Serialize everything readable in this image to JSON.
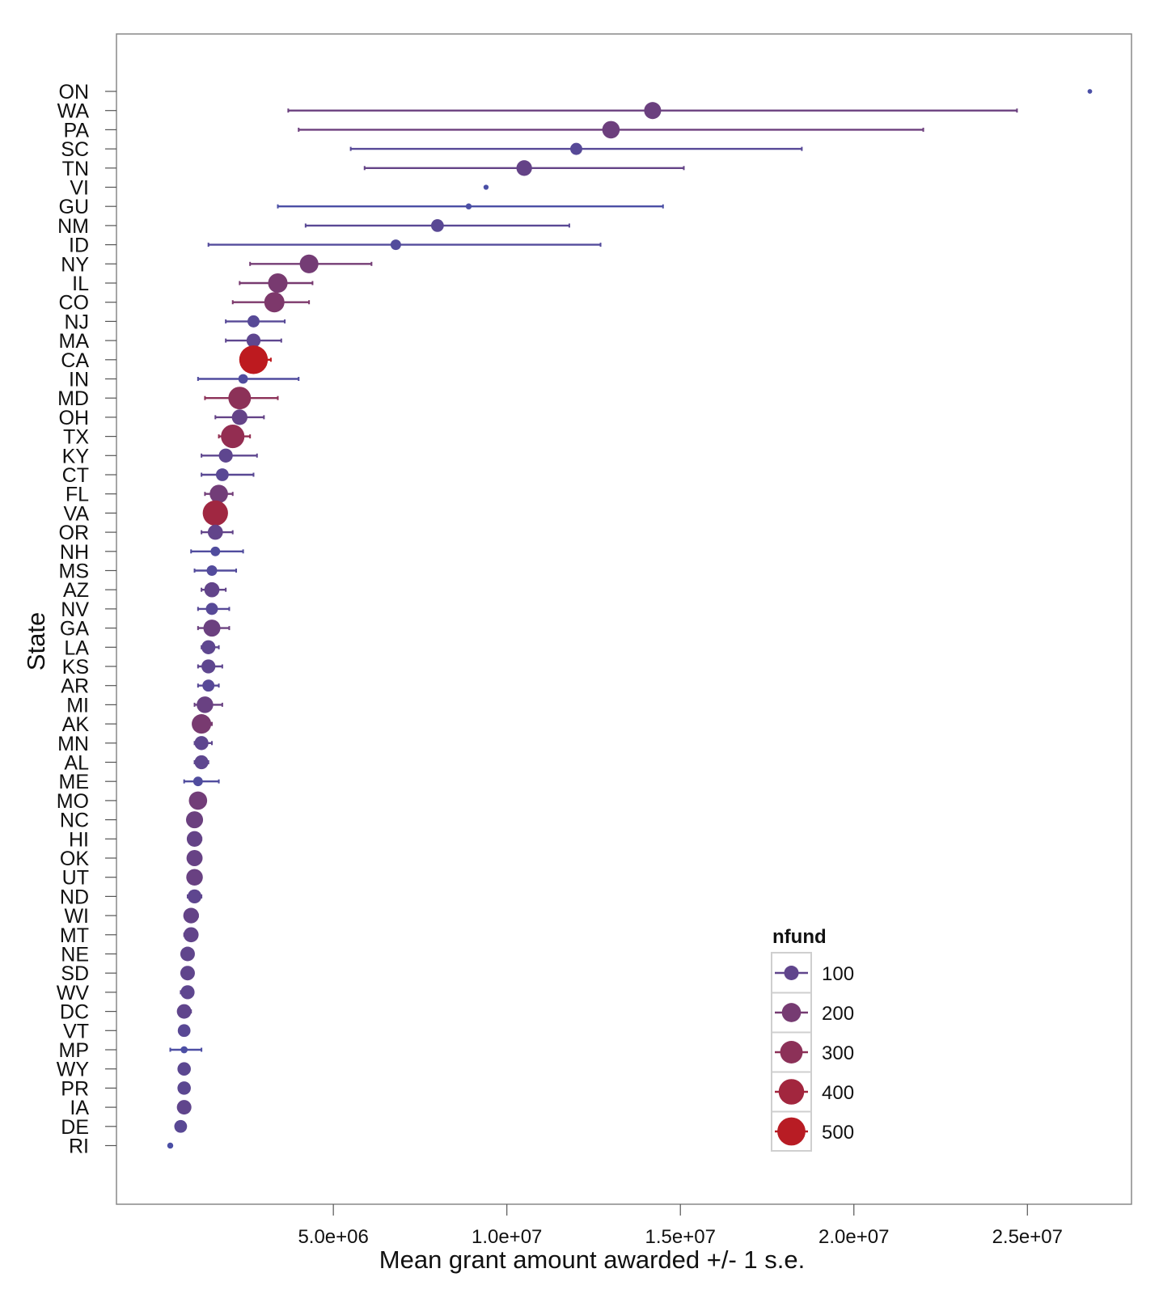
{
  "chart_data": {
    "type": "scatter",
    "subtype": "dot-plot-with-error-bars",
    "xlabel": "Mean grant amount awarded +/- 1 s.e.",
    "ylabel": "State",
    "x_ticks": [
      5000000,
      10000000,
      15000000,
      20000000,
      25000000
    ],
    "x_tick_labels": [
      "5.0e+06",
      "1.0e+07",
      "1.5e+07",
      "2.0e+07",
      "2.5e+07"
    ],
    "xlim": [
      -1250000,
      28000000
    ],
    "grid": false,
    "legend": {
      "title": "nfund",
      "placement": "bottom-right inside plot",
      "entries": [
        {
          "label": "100",
          "nfund": 100,
          "color": "#4a4fa6"
        },
        {
          "label": "200",
          "nfund": 200,
          "color": "#6a3c8a"
        },
        {
          "label": "300",
          "nfund": 300,
          "color": "#8a2f62"
        },
        {
          "label": "400",
          "nfund": 400,
          "color": "#a52238"
        },
        {
          "label": "500",
          "nfund": 500,
          "color": "#bd1a1f"
        }
      ]
    },
    "color_low": "#4a4fa6",
    "color_high": "#bd1a1f",
    "states": [
      {
        "state": "ON",
        "mean": 26800000,
        "lo": 26800000,
        "hi": 26800000,
        "nfund": 1
      },
      {
        "state": "WA",
        "mean": 14200000,
        "lo": 3700000,
        "hi": 24700000,
        "nfund": 150
      },
      {
        "state": "PA",
        "mean": 13000000,
        "lo": 4000000,
        "hi": 22000000,
        "nfund": 160
      },
      {
        "state": "SC",
        "mean": 12000000,
        "lo": 5500000,
        "hi": 18500000,
        "nfund": 60
      },
      {
        "state": "TN",
        "mean": 10500000,
        "lo": 5900000,
        "hi": 15100000,
        "nfund": 120
      },
      {
        "state": "VI",
        "mean": 9400000,
        "lo": 9400000,
        "hi": 9400000,
        "nfund": 2
      },
      {
        "state": "GU",
        "mean": 8900000,
        "lo": 3400000,
        "hi": 14500000,
        "nfund": 5
      },
      {
        "state": "NM",
        "mean": 8000000,
        "lo": 4200000,
        "hi": 11800000,
        "nfund": 70
      },
      {
        "state": "ID",
        "mean": 6800000,
        "lo": 1400000,
        "hi": 12700000,
        "nfund": 40
      },
      {
        "state": "NY",
        "mean": 4300000,
        "lo": 2600000,
        "hi": 6100000,
        "nfund": 190
      },
      {
        "state": "IL",
        "mean": 3400000,
        "lo": 2300000,
        "hi": 4400000,
        "nfund": 210
      },
      {
        "state": "CO",
        "mean": 3300000,
        "lo": 2100000,
        "hi": 4300000,
        "nfund": 230
      },
      {
        "state": "NJ",
        "mean": 2700000,
        "lo": 1900000,
        "hi": 3600000,
        "nfund": 60
      },
      {
        "state": "MA",
        "mean": 2700000,
        "lo": 1900000,
        "hi": 3500000,
        "nfund": 90
      },
      {
        "state": "CA",
        "mean": 2700000,
        "lo": 2400000,
        "hi": 3200000,
        "nfund": 520
      },
      {
        "state": "IN",
        "mean": 2400000,
        "lo": 1100000,
        "hi": 4000000,
        "nfund": 30
      },
      {
        "state": "MD",
        "mean": 2300000,
        "lo": 1300000,
        "hi": 3400000,
        "nfund": 300
      },
      {
        "state": "OH",
        "mean": 2300000,
        "lo": 1600000,
        "hi": 3000000,
        "nfund": 120
      },
      {
        "state": "TX",
        "mean": 2100000,
        "lo": 1700000,
        "hi": 2600000,
        "nfund": 330
      },
      {
        "state": "KY",
        "mean": 1900000,
        "lo": 1200000,
        "hi": 2800000,
        "nfund": 90
      },
      {
        "state": "CT",
        "mean": 1800000,
        "lo": 1200000,
        "hi": 2700000,
        "nfund": 70
      },
      {
        "state": "FL",
        "mean": 1700000,
        "lo": 1300000,
        "hi": 2100000,
        "nfund": 180
      },
      {
        "state": "VA",
        "mean": 1600000,
        "lo": 1400000,
        "hi": 1800000,
        "nfund": 390
      },
      {
        "state": "OR",
        "mean": 1600000,
        "lo": 1200000,
        "hi": 2100000,
        "nfund": 110
      },
      {
        "state": "NH",
        "mean": 1600000,
        "lo": 900000,
        "hi": 2400000,
        "nfund": 30
      },
      {
        "state": "MS",
        "mean": 1500000,
        "lo": 1000000,
        "hi": 2200000,
        "nfund": 40
      },
      {
        "state": "AZ",
        "mean": 1500000,
        "lo": 1200000,
        "hi": 1900000,
        "nfund": 110
      },
      {
        "state": "NV",
        "mean": 1500000,
        "lo": 1100000,
        "hi": 2000000,
        "nfund": 60
      },
      {
        "state": "GA",
        "mean": 1500000,
        "lo": 1100000,
        "hi": 2000000,
        "nfund": 150
      },
      {
        "state": "LA",
        "mean": 1400000,
        "lo": 1200000,
        "hi": 1700000,
        "nfund": 90
      },
      {
        "state": "KS",
        "mean": 1400000,
        "lo": 1100000,
        "hi": 1800000,
        "nfund": 90
      },
      {
        "state": "AR",
        "mean": 1400000,
        "lo": 1100000,
        "hi": 1700000,
        "nfund": 60
      },
      {
        "state": "MI",
        "mean": 1300000,
        "lo": 1000000,
        "hi": 1800000,
        "nfund": 140
      },
      {
        "state": "AK",
        "mean": 1200000,
        "lo": 1000000,
        "hi": 1500000,
        "nfund": 210
      },
      {
        "state": "MN",
        "mean": 1200000,
        "lo": 1000000,
        "hi": 1500000,
        "nfund": 90
      },
      {
        "state": "AL",
        "mean": 1200000,
        "lo": 1000000,
        "hi": 1400000,
        "nfund": 90
      },
      {
        "state": "ME",
        "mean": 1100000,
        "lo": 700000,
        "hi": 1700000,
        "nfund": 30
      },
      {
        "state": "MO",
        "mean": 1100000,
        "lo": 900000,
        "hi": 1200000,
        "nfund": 180
      },
      {
        "state": "NC",
        "mean": 1000000,
        "lo": 900000,
        "hi": 1200000,
        "nfund": 150
      },
      {
        "state": "HI",
        "mean": 1000000,
        "lo": 900000,
        "hi": 1200000,
        "nfund": 120
      },
      {
        "state": "OK",
        "mean": 1000000,
        "lo": 900000,
        "hi": 1200000,
        "nfund": 130
      },
      {
        "state": "UT",
        "mean": 1000000,
        "lo": 900000,
        "hi": 1100000,
        "nfund": 140
      },
      {
        "state": "ND",
        "mean": 1000000,
        "lo": 800000,
        "hi": 1200000,
        "nfund": 90
      },
      {
        "state": "WI",
        "mean": 900000,
        "lo": 800000,
        "hi": 1100000,
        "nfund": 120
      },
      {
        "state": "MT",
        "mean": 900000,
        "lo": 700000,
        "hi": 1000000,
        "nfund": 110
      },
      {
        "state": "NE",
        "mean": 800000,
        "lo": 700000,
        "hi": 900000,
        "nfund": 100
      },
      {
        "state": "SD",
        "mean": 800000,
        "lo": 700000,
        "hi": 900000,
        "nfund": 100
      },
      {
        "state": "WV",
        "mean": 800000,
        "lo": 600000,
        "hi": 900000,
        "nfund": 90
      },
      {
        "state": "DC",
        "mean": 700000,
        "lo": 600000,
        "hi": 900000,
        "nfund": 100
      },
      {
        "state": "VT",
        "mean": 700000,
        "lo": 600000,
        "hi": 800000,
        "nfund": 70
      },
      {
        "state": "MP",
        "mean": 700000,
        "lo": 300000,
        "hi": 1200000,
        "nfund": 10
      },
      {
        "state": "WY",
        "mean": 700000,
        "lo": 600000,
        "hi": 800000,
        "nfund": 80
      },
      {
        "state": "PR",
        "mean": 700000,
        "lo": 600000,
        "hi": 800000,
        "nfund": 80
      },
      {
        "state": "IA",
        "mean": 700000,
        "lo": 600000,
        "hi": 700000,
        "nfund": 100
      },
      {
        "state": "DE",
        "mean": 600000,
        "lo": 500000,
        "hi": 700000,
        "nfund": 70
      },
      {
        "state": "RI",
        "mean": 300000,
        "lo": 300000,
        "hi": 300000,
        "nfund": 5
      }
    ]
  }
}
